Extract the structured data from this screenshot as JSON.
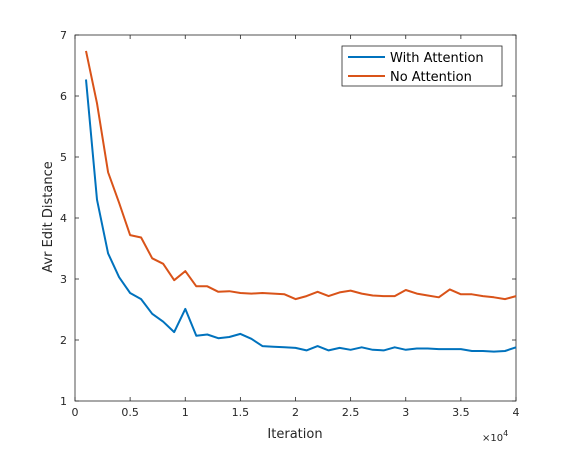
{
  "chart_data": {
    "type": "line",
    "xlabel": "Iteration",
    "ylabel": "Avr Edit Distance",
    "x_exponent_label": "×10",
    "x_exponent_power": "4",
    "xlim": [
      0,
      40000
    ],
    "ylim": [
      1,
      7
    ],
    "x_ticks": [
      0,
      5000,
      10000,
      15000,
      20000,
      25000,
      30000,
      35000,
      40000
    ],
    "x_tick_labels": [
      "0",
      "0.5",
      "1",
      "1.5",
      "2",
      "2.5",
      "3",
      "3.5",
      "4"
    ],
    "y_ticks": [
      1,
      2,
      3,
      4,
      5,
      6,
      7
    ],
    "y_tick_labels": [
      "1",
      "2",
      "3",
      "4",
      "5",
      "6",
      "7"
    ],
    "grid": false,
    "legend_position": "top-right",
    "x": [
      1000,
      2000,
      3000,
      4000,
      5000,
      6000,
      7000,
      8000,
      9000,
      10000,
      11000,
      12000,
      13000,
      14000,
      15000,
      16000,
      17000,
      18000,
      19000,
      20000,
      21000,
      22000,
      23000,
      24000,
      25000,
      26000,
      27000,
      28000,
      29000,
      30000,
      31000,
      32000,
      33000,
      34000,
      35000,
      36000,
      37000,
      38000,
      39000,
      40000
    ],
    "series": [
      {
        "name": "With Attention",
        "color": "#0072bd",
        "values": [
          6.27,
          4.3,
          3.42,
          3.03,
          2.77,
          2.67,
          2.43,
          2.3,
          2.13,
          2.51,
          2.07,
          2.09,
          2.03,
          2.05,
          2.1,
          2.02,
          1.9,
          1.89,
          1.88,
          1.87,
          1.83,
          1.9,
          1.83,
          1.87,
          1.84,
          1.88,
          1.84,
          1.83,
          1.88,
          1.84,
          1.86,
          1.86,
          1.85,
          1.85,
          1.85,
          1.82,
          1.82,
          1.81,
          1.82,
          1.88
        ]
      },
      {
        "name": "No Attention",
        "color": "#d95319",
        "values": [
          6.74,
          5.88,
          4.75,
          4.25,
          3.72,
          3.68,
          3.34,
          3.25,
          2.98,
          3.13,
          2.88,
          2.88,
          2.79,
          2.8,
          2.77,
          2.76,
          2.77,
          2.76,
          2.75,
          2.67,
          2.72,
          2.79,
          2.72,
          2.78,
          2.81,
          2.76,
          2.73,
          2.72,
          2.72,
          2.82,
          2.76,
          2.73,
          2.7,
          2.83,
          2.75,
          2.75,
          2.72,
          2.7,
          2.67,
          2.72
        ]
      }
    ]
  }
}
